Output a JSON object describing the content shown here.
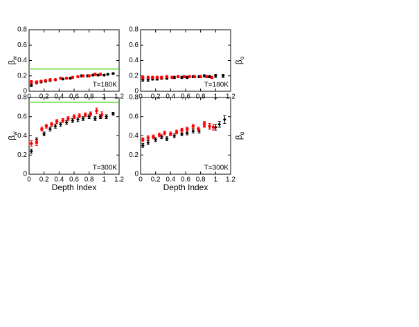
{
  "chart_data": [
    {
      "type": "scatter",
      "ylabel": "β",
      "ylabel_sub": "w",
      "ylabel_side": "left",
      "annotation": "T=180K",
      "xlim": [
        0,
        1.2
      ],
      "ylim": [
        0,
        0.8
      ],
      "xticks": [
        0,
        0.2,
        0.4,
        0.6,
        0.8,
        1,
        1.2
      ],
      "yticks": [
        0,
        0.2,
        0.4,
        0.6,
        0.8
      ],
      "reference_line": {
        "value": 0.29,
        "color": "#66dd44"
      },
      "series": [
        {
          "color": "#000000",
          "marker": "diamond",
          "x": [
            0.03,
            0.1,
            0.16,
            0.22,
            0.28,
            0.35,
            0.45,
            0.55,
            0.7,
            0.78,
            0.85,
            0.92,
            1.0,
            1.05,
            1.12
          ],
          "values": [
            0.08,
            0.11,
            0.12,
            0.13,
            0.14,
            0.15,
            0.16,
            0.17,
            0.2,
            0.2,
            0.21,
            0.21,
            0.21,
            0.22,
            0.23
          ],
          "errors": [
            0.02,
            0.015,
            0.01,
            0.01,
            0.01,
            0.01,
            0.01,
            0.01,
            0.015,
            0.015,
            0.01,
            0.01,
            0.01,
            0.01,
            0.01
          ]
        },
        {
          "color": "#ff0000",
          "marker": "circle",
          "x": [
            0.03,
            0.1,
            0.16,
            0.22,
            0.28,
            0.35,
            0.42,
            0.5,
            0.58,
            0.65,
            0.72,
            0.8,
            0.88,
            0.95
          ],
          "values": [
            0.12,
            0.12,
            0.13,
            0.14,
            0.15,
            0.15,
            0.17,
            0.17,
            0.18,
            0.19,
            0.2,
            0.2,
            0.22,
            0.22
          ],
          "errors": [
            0.02,
            0.015,
            0.01,
            0.01,
            0.01,
            0.01,
            0.01,
            0.01,
            0.01,
            0.01,
            0.015,
            0.015,
            0.015,
            0.015
          ]
        }
      ]
    },
    {
      "type": "scatter",
      "ylabel": "β",
      "ylabel_sub": "α",
      "ylabel_side": "right",
      "annotation": "T=180K",
      "xlim": [
        0,
        1.2
      ],
      "ylim": [
        0,
        0.8
      ],
      "xticks": [
        0,
        0.2,
        0.4,
        0.6,
        0.8,
        1,
        1.2
      ],
      "yticks": [
        0,
        0.2,
        0.4,
        0.6,
        0.8
      ],
      "series": [
        {
          "color": "#000000",
          "marker": "diamond",
          "x": [
            0.03,
            0.1,
            0.16,
            0.22,
            0.28,
            0.35,
            0.45,
            0.55,
            0.62,
            0.7,
            0.78,
            0.85,
            0.92,
            1.0,
            1.1
          ],
          "values": [
            0.15,
            0.15,
            0.16,
            0.16,
            0.17,
            0.17,
            0.18,
            0.18,
            0.18,
            0.19,
            0.19,
            0.2,
            0.19,
            0.2,
            0.2
          ],
          "errors": [
            0.02,
            0.02,
            0.015,
            0.015,
            0.015,
            0.015,
            0.015,
            0.015,
            0.015,
            0.015,
            0.015,
            0.015,
            0.015,
            0.02,
            0.02
          ]
        },
        {
          "color": "#ff0000",
          "marker": "circle",
          "x": [
            0.03,
            0.1,
            0.16,
            0.22,
            0.28,
            0.35,
            0.42,
            0.5,
            0.58,
            0.65,
            0.72,
            0.8,
            0.88,
            0.95
          ],
          "values": [
            0.18,
            0.18,
            0.18,
            0.18,
            0.18,
            0.19,
            0.18,
            0.19,
            0.19,
            0.19,
            0.19,
            0.19,
            0.19,
            0.18
          ],
          "errors": [
            0.02,
            0.015,
            0.015,
            0.015,
            0.015,
            0.015,
            0.015,
            0.015,
            0.015,
            0.015,
            0.015,
            0.015,
            0.015,
            0.015
          ]
        }
      ]
    },
    {
      "type": "scatter",
      "ylabel": "β",
      "ylabel_sub": "w",
      "ylabel_side": "left",
      "annotation": "T=300K",
      "xlabel": "Depth Index",
      "xlim": [
        0,
        1.2
      ],
      "ylim": [
        0,
        0.8
      ],
      "xticks": [
        0,
        0.2,
        0.4,
        0.6,
        0.8,
        1,
        1.2
      ],
      "yticks": [
        0,
        0.2,
        0.4,
        0.6,
        0.8
      ],
      "reference_line": {
        "value": 0.75,
        "color": "#66dd44"
      },
      "series": [
        {
          "color": "#000000",
          "marker": "diamond",
          "x": [
            0.03,
            0.1,
            0.2,
            0.28,
            0.35,
            0.42,
            0.5,
            0.58,
            0.65,
            0.72,
            0.8,
            0.88,
            0.95,
            1.03,
            1.12
          ],
          "values": [
            0.24,
            0.36,
            0.42,
            0.47,
            0.5,
            0.52,
            0.54,
            0.56,
            0.57,
            0.58,
            0.6,
            0.58,
            0.6,
            0.6,
            0.63
          ],
          "errors": [
            0.02,
            0.02,
            0.02,
            0.02,
            0.02,
            0.02,
            0.02,
            0.02,
            0.02,
            0.02,
            0.02,
            0.02,
            0.02,
            0.02,
            0.015
          ]
        },
        {
          "color": "#ff0000",
          "marker": "circle",
          "x": [
            0.03,
            0.1,
            0.17,
            0.23,
            0.3,
            0.37,
            0.45,
            0.52,
            0.6,
            0.67,
            0.75,
            0.82,
            0.9,
            0.97
          ],
          "values": [
            0.32,
            0.33,
            0.47,
            0.5,
            0.52,
            0.55,
            0.56,
            0.58,
            0.6,
            0.61,
            0.62,
            0.63,
            0.66,
            0.62
          ],
          "errors": [
            0.03,
            0.03,
            0.02,
            0.02,
            0.02,
            0.02,
            0.02,
            0.02,
            0.02,
            0.02,
            0.02,
            0.02,
            0.03,
            0.03
          ]
        }
      ]
    },
    {
      "type": "scatter",
      "ylabel": "β",
      "ylabel_sub": "α",
      "ylabel_side": "right",
      "annotation": "T=300K",
      "xlabel": "Depth Index",
      "xlim": [
        0,
        1.2
      ],
      "ylim": [
        0,
        0.8
      ],
      "xticks": [
        0,
        0.2,
        0.4,
        0.6,
        0.8,
        1,
        1.2
      ],
      "yticks": [
        0,
        0.2,
        0.4,
        0.6,
        0.8
      ],
      "series": [
        {
          "color": "#000000",
          "marker": "diamond",
          "x": [
            0.03,
            0.1,
            0.2,
            0.28,
            0.35,
            0.45,
            0.55,
            0.62,
            0.7,
            0.78,
            0.85,
            0.92,
            1.0,
            1.05,
            1.12
          ],
          "values": [
            0.3,
            0.33,
            0.36,
            0.39,
            0.37,
            0.4,
            0.42,
            0.43,
            0.45,
            0.45,
            0.52,
            0.5,
            0.49,
            0.52,
            0.57
          ],
          "errors": [
            0.02,
            0.02,
            0.02,
            0.02,
            0.02,
            0.02,
            0.02,
            0.02,
            0.02,
            0.02,
            0.02,
            0.03,
            0.03,
            0.03,
            0.04
          ]
        },
        {
          "color": "#ff0000",
          "marker": "circle",
          "x": [
            0.03,
            0.1,
            0.17,
            0.25,
            0.32,
            0.4,
            0.48,
            0.55,
            0.62,
            0.7,
            0.77,
            0.85,
            0.92,
            0.97
          ],
          "values": [
            0.36,
            0.38,
            0.39,
            0.41,
            0.43,
            0.42,
            0.44,
            0.46,
            0.47,
            0.5,
            0.47,
            0.52,
            0.5,
            0.49
          ],
          "errors": [
            0.02,
            0.02,
            0.02,
            0.02,
            0.02,
            0.02,
            0.02,
            0.02,
            0.02,
            0.02,
            0.02,
            0.03,
            0.03,
            0.03
          ]
        }
      ]
    }
  ]
}
